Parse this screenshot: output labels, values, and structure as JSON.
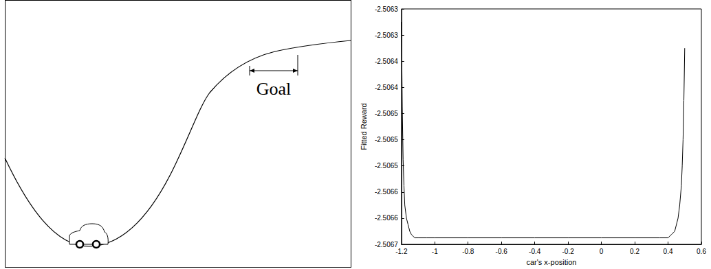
{
  "diagram": {
    "goal_label": "Goal"
  },
  "chart_data": {
    "type": "line",
    "xlabel": "car's x-position",
    "ylabel": "Fitted Reward",
    "x": [
      -1.2,
      -1.195,
      -1.19,
      -1.185,
      -1.18,
      -1.17,
      -1.16,
      -1.15,
      -1.14,
      -1.12,
      -1.1,
      -1.05,
      -1.0,
      -0.8,
      -0.6,
      -0.4,
      -0.2,
      0.0,
      0.2,
      0.35,
      0.4,
      0.42,
      0.44,
      0.46,
      0.47,
      0.48,
      0.485,
      0.49,
      0.495,
      0.5
    ],
    "values": [
      -2.50632,
      -2.50645,
      -2.50653,
      -2.50657,
      -2.5066,
      -2.50662,
      -2.50663,
      -2.50664,
      -2.506645,
      -2.50665,
      -2.50665,
      -2.50665,
      -2.50665,
      -2.50665,
      -2.50665,
      -2.50665,
      -2.50665,
      -2.50665,
      -2.50665,
      -2.50665,
      -2.50665,
      -2.506645,
      -2.50664,
      -2.50662,
      -2.5066,
      -2.50657,
      -2.50654,
      -2.5065,
      -2.50644,
      -2.50636
    ],
    "color": "#000000",
    "xlim": [
      -1.2,
      0.6
    ],
    "xticks": [
      -1.2,
      -1,
      -0.8,
      -0.6,
      -0.4,
      -0.2,
      0,
      0.2,
      0.4,
      0.6
    ],
    "ylim": [
      -2.50666,
      -2.5063
    ],
    "yticks": [
      {
        "value": -2.50666,
        "label": "-2.5067"
      },
      {
        "value": -2.50662,
        "label": "-2.5066"
      },
      {
        "value": -2.50658,
        "label": "-2.5066"
      },
      {
        "value": -2.50654,
        "label": "-2.5065"
      },
      {
        "value": -2.5065,
        "label": "-2.5065"
      },
      {
        "value": -2.50646,
        "label": "-2.5065"
      },
      {
        "value": -2.50642,
        "label": "-2.5064"
      },
      {
        "value": -2.50638,
        "label": "-2.5064"
      },
      {
        "value": -2.50634,
        "label": "-2.5063"
      },
      {
        "value": -2.5063,
        "label": "-2.5063"
      }
    ],
    "grid": false
  }
}
